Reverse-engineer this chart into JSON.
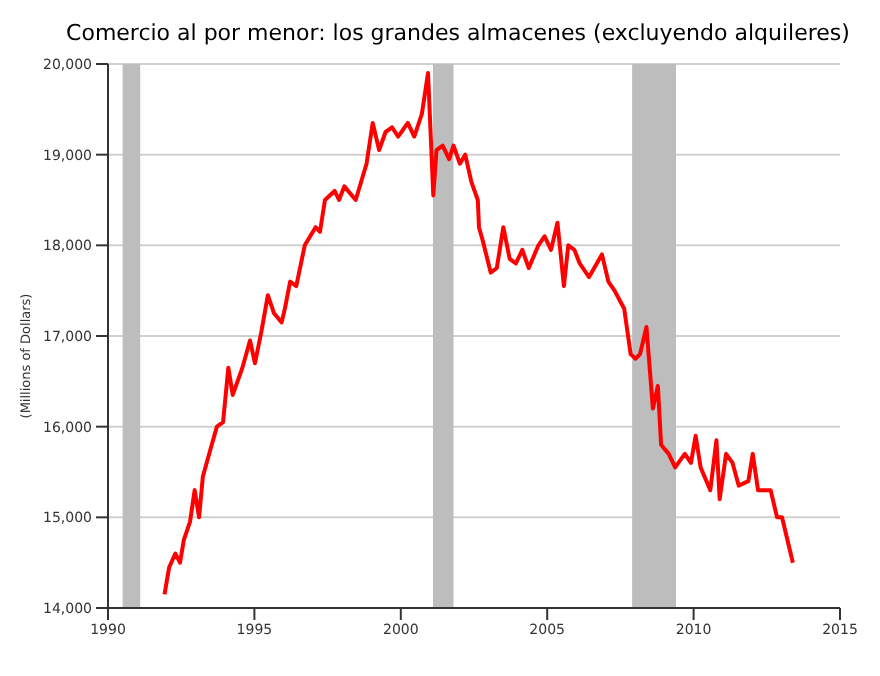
{
  "chart_data": {
    "type": "line",
    "title": "Comercio al por menor: los grandes almacenes (excluyendo alquileres)",
    "ylabel": "(Millions of Dollars)",
    "x": [
      1991.93,
      1992.09,
      1992.3,
      1992.46,
      1992.59,
      1992.8,
      1992.96,
      1993.11,
      1993.24,
      1993.5,
      1993.72,
      1993.93,
      1994.11,
      1994.26,
      1994.59,
      1994.85,
      1995.02,
      1995.24,
      1995.46,
      1995.67,
      1995.93,
      1996.04,
      1996.22,
      1996.43,
      1996.72,
      1997.09,
      1997.24,
      1997.41,
      1997.74,
      1997.89,
      1998.07,
      1998.46,
      1998.83,
      1999.04,
      1999.26,
      1999.48,
      1999.7,
      1999.91,
      2000.24,
      2000.46,
      2000.72,
      2000.93,
      2001.11,
      2001.22,
      2001.43,
      2001.65,
      2001.8,
      2002.02,
      2002.2,
      2002.41,
      2002.63,
      2002.67,
      2002.8,
      2003.07,
      2003.28,
      2003.5,
      2003.72,
      2003.93,
      2004.15,
      2004.37,
      2004.7,
      2004.91,
      2005.13,
      2005.35,
      2005.57,
      2005.72,
      2005.93,
      2006.11,
      2006.43,
      2006.87,
      2007.09,
      2007.3,
      2007.63,
      2007.85,
      2008.02,
      2008.17,
      2008.39,
      2008.61,
      2008.78,
      2008.89,
      2009.15,
      2009.37,
      2009.7,
      2009.91,
      2010.07,
      2010.24,
      2010.57,
      2010.78,
      2010.89,
      2011.11,
      2011.33,
      2011.54,
      2011.87,
      2012.02,
      2012.2,
      2012.63,
      2012.85,
      2013.02,
      2013.39
    ],
    "series": [
      {
        "color": "#ff0000",
        "values": [
          14150,
          14450,
          14600,
          14500,
          14750,
          14950,
          15300,
          15000,
          15450,
          15750,
          16000,
          16050,
          16650,
          16350,
          16650,
          16950,
          16700,
          17050,
          17450,
          17250,
          17150,
          17300,
          17600,
          17550,
          18000,
          18200,
          18150,
          18500,
          18600,
          18500,
          18650,
          18500,
          18900,
          19350,
          19050,
          19250,
          19300,
          19200,
          19350,
          19200,
          19450,
          19900,
          18550,
          19050,
          19100,
          18950,
          19100,
          18900,
          19000,
          18700,
          18500,
          18200,
          18050,
          17700,
          17750,
          18200,
          17850,
          17800,
          17950,
          17750,
          18000,
          18100,
          17950,
          18250,
          17550,
          18000,
          17950,
          17800,
          17650,
          17900,
          17600,
          17500,
          17300,
          16800,
          16750,
          16800,
          17100,
          16200,
          16450,
          15800,
          15700,
          15550,
          15700,
          15600,
          15900,
          15550,
          15300,
          15850,
          15200,
          15700,
          15600,
          15350,
          15400,
          15700,
          15300,
          15300,
          15000,
          15000,
          14500
        ]
      }
    ],
    "xlim": [
      1990,
      2015
    ],
    "xticks": [
      1990,
      1995,
      2000,
      2005,
      2010,
      2015
    ],
    "ylim": [
      14000,
      20000
    ],
    "yticks": [
      {
        "value": 14000,
        "label": "14,000"
      },
      {
        "value": 15000,
        "label": "15,000"
      },
      {
        "value": 16000,
        "label": "16,000"
      },
      {
        "value": 17000,
        "label": "17,000"
      },
      {
        "value": 18000,
        "label": "18,000"
      },
      {
        "value": 19000,
        "label": "19,000"
      },
      {
        "value": 20000,
        "label": "20,000"
      }
    ],
    "bands": [
      {
        "axis": "x",
        "from": 1990.5,
        "to": 1991.1,
        "color": "#bdbdbd"
      },
      {
        "axis": "x",
        "from": 2001.1,
        "to": 2001.8,
        "color": "#bdbdbd"
      },
      {
        "axis": "x",
        "from": 2007.9,
        "to": 2009.4,
        "color": "#bdbdbd"
      }
    ],
    "grid": "y",
    "legend": false,
    "marker": "none",
    "line_style": "solid"
  }
}
